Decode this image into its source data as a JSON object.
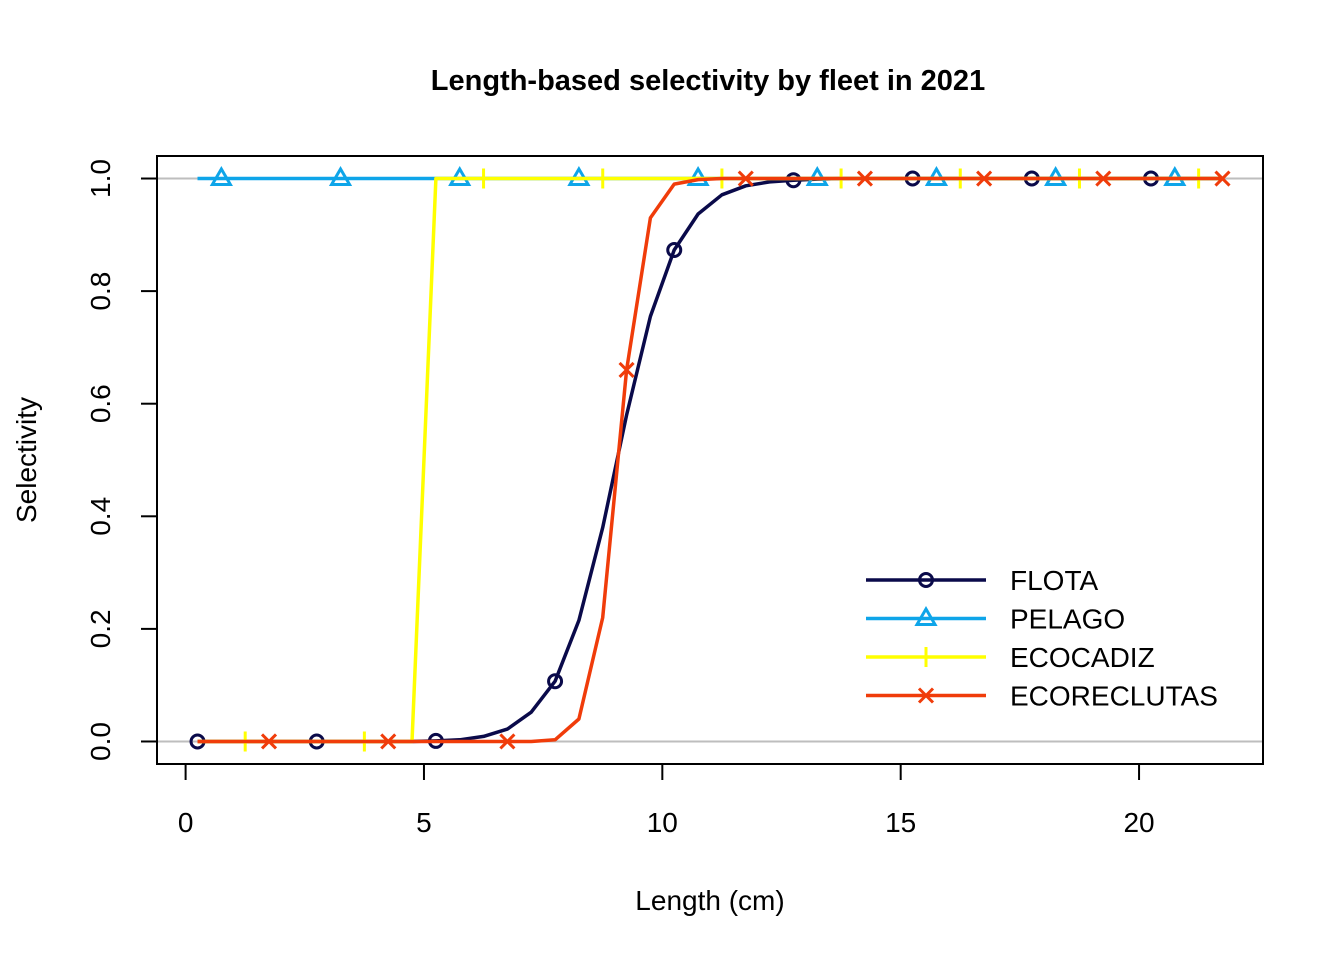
{
  "chart_data": {
    "type": "line",
    "title": "Length-based selectivity by fleet in 2021",
    "xlabel": "Length (cm)",
    "ylabel": "Selectivity",
    "xlim": [
      -0.6,
      22.6
    ],
    "ylim": [
      -0.04,
      1.04
    ],
    "x_ticks": [
      0,
      5,
      10,
      15,
      20
    ],
    "y_ticks": [
      0.0,
      0.2,
      0.4,
      0.6,
      0.8,
      1.0
    ],
    "x_tick_labels": [
      "0",
      "5",
      "10",
      "15",
      "20"
    ],
    "y_tick_labels": [
      "0.0",
      "0.2",
      "0.4",
      "0.6",
      "0.8",
      "1.0"
    ],
    "reference_lines": [
      0,
      1
    ],
    "grid": false,
    "legend_position": "bottom-right",
    "x": [
      0.25,
      0.75,
      1.25,
      1.75,
      2.25,
      2.75,
      3.25,
      3.75,
      4.25,
      4.75,
      5.25,
      5.75,
      6.25,
      6.75,
      7.25,
      7.75,
      8.25,
      8.75,
      9.25,
      9.75,
      10.25,
      10.75,
      11.25,
      11.75,
      12.25,
      12.75,
      13.25,
      13.75,
      14.25,
      14.75,
      15.25,
      15.75,
      16.25,
      16.75,
      17.25,
      17.75,
      18.25,
      18.75,
      19.25,
      19.75,
      20.25,
      20.75,
      21.25,
      21.75
    ],
    "series": [
      {
        "name": "FLOTA",
        "color": "#0a0a4a",
        "marker": "circle",
        "marker_start": 0,
        "values": [
          0,
          0,
          0,
          0,
          0,
          0,
          0,
          0,
          0,
          0,
          0.001,
          0.003,
          0.009,
          0.022,
          0.052,
          0.107,
          0.215,
          0.38,
          0.58,
          0.755,
          0.873,
          0.937,
          0.971,
          0.987,
          0.994,
          0.997,
          0.999,
          1,
          1,
          1,
          1,
          1,
          1,
          1,
          1,
          1,
          1,
          1,
          1,
          1,
          1,
          1,
          1,
          1
        ]
      },
      {
        "name": "PELAGO",
        "color": "#0ea5e9",
        "marker": "triangle",
        "marker_start": 1,
        "values": [
          1,
          1,
          1,
          1,
          1,
          1,
          1,
          1,
          1,
          1,
          1,
          1,
          1,
          1,
          1,
          1,
          1,
          1,
          1,
          1,
          1,
          1,
          1,
          1,
          1,
          1,
          1,
          1,
          1,
          1,
          1,
          1,
          1,
          1,
          1,
          1,
          1,
          1,
          1,
          1,
          1,
          1,
          1,
          1
        ]
      },
      {
        "name": "ECOCADIZ",
        "color": "#ffff00",
        "marker": "plus",
        "marker_start": 2,
        "values": [
          0,
          0,
          0,
          0,
          0,
          0,
          0,
          0,
          0,
          0,
          1,
          1,
          1,
          1,
          1,
          1,
          1,
          1,
          1,
          1,
          1,
          1,
          1,
          1,
          1,
          1,
          1,
          1,
          1,
          1,
          1,
          1,
          1,
          1,
          1,
          1,
          1,
          1,
          1,
          1,
          1,
          1,
          1,
          1
        ]
      },
      {
        "name": "ECORECLUTAS",
        "color": "#f03c0a",
        "marker": "cross",
        "marker_start": 3,
        "values": [
          0,
          0,
          0,
          0,
          0,
          0,
          0,
          0,
          0,
          0,
          0,
          0,
          0,
          0,
          0,
          0.003,
          0.04,
          0.22,
          0.66,
          0.93,
          0.99,
          0.998,
          1,
          1,
          1,
          1,
          1,
          1,
          1,
          1,
          1,
          1,
          1,
          1,
          1,
          1,
          1,
          1,
          1,
          1,
          1,
          1,
          1,
          1
        ]
      }
    ]
  }
}
